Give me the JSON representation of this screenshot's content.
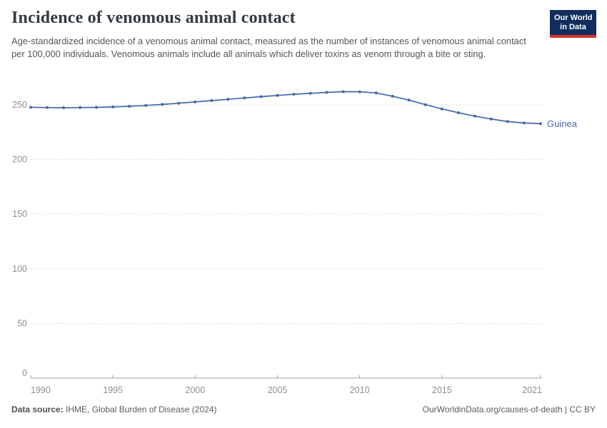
{
  "header": {
    "title": "Incidence of venomous animal contact",
    "subtitle": "Age-standardized incidence of a venomous animal contact, measured as the number of instances of venomous animal contact per 100,000 individuals. Venomous animals include all animals which deliver toxins as venom through a bite or sting.",
    "logo": {
      "line1": "Our World",
      "line2": "in Data"
    }
  },
  "chart_data": {
    "type": "line",
    "title": "Incidence of venomous animal contact",
    "xlabel": "",
    "ylabel": "",
    "grid": "horizontal-dashed",
    "legend_position": "end-of-line-label",
    "ylim": [
      0,
      270
    ],
    "yticks": [
      0,
      50,
      100,
      150,
      200,
      250
    ],
    "xticks": [
      1990,
      1995,
      2000,
      2005,
      2010,
      2015,
      2021
    ],
    "x": [
      1990,
      1991,
      1992,
      1993,
      1994,
      1995,
      1996,
      1997,
      1998,
      1999,
      2000,
      2001,
      2002,
      2003,
      2004,
      2005,
      2006,
      2007,
      2008,
      2009,
      2010,
      2011,
      2012,
      2013,
      2014,
      2015,
      2016,
      2017,
      2018,
      2019,
      2020,
      2021
    ],
    "series": [
      {
        "name": "Guinea",
        "color": "#4767a7",
        "values": [
          247.8,
          247.5,
          247.4,
          247.5,
          247.7,
          248.1,
          248.7,
          249.5,
          250.4,
          251.5,
          252.7,
          253.9,
          255.1,
          256.3,
          257.5,
          258.6,
          259.7,
          260.6,
          261.4,
          262.1,
          262.0,
          260.9,
          257.9,
          254.4,
          250.2,
          246.3,
          242.8,
          239.7,
          237.0,
          234.7,
          233.4,
          232.8
        ]
      }
    ]
  },
  "colors": {
    "line": "#4767a7",
    "grid": "#dcdcdc",
    "axis": "#a3a3a3",
    "tick_label": "#8f8f8f",
    "logo_bg": "#102d5c",
    "logo_accent": "#d0362e"
  },
  "footer": {
    "source_label": "Data source:",
    "source_text": " IHME, Global Burden of Disease (2024)",
    "license_text": "OurWorldinData.org/causes-of-death | CC BY"
  }
}
